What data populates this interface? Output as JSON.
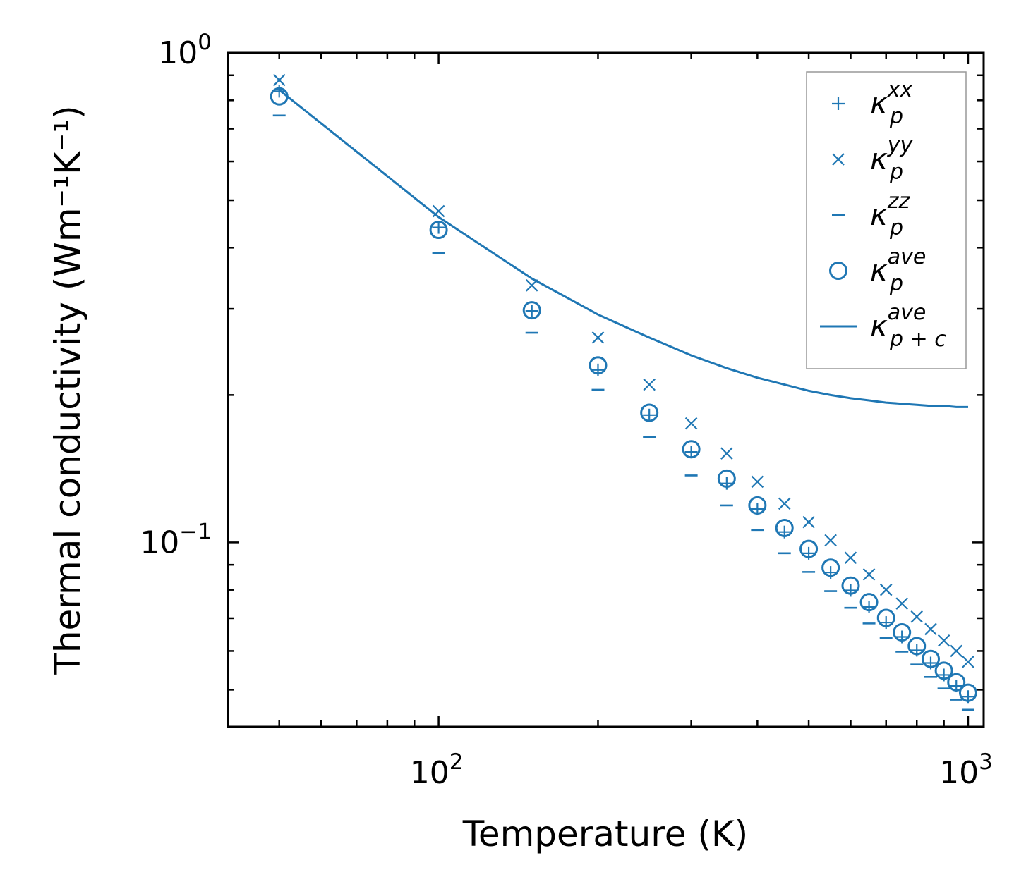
{
  "chart_data": {
    "type": "scatter",
    "title": "",
    "xlabel": "Temperature (K)",
    "ylabel": "Thermal conductivity (Wm⁻¹K⁻¹)",
    "xscale": "log",
    "yscale": "log",
    "xlim": [
      40,
      1070
    ],
    "ylim": [
      0.042,
      1.0
    ],
    "grid": false,
    "legend_position": "top-right",
    "x_tick_labels": [
      {
        "value": 100,
        "base": "10",
        "exp": "2"
      },
      {
        "value": 1000,
        "base": "10",
        "exp": "3"
      }
    ],
    "y_tick_labels": [
      {
        "value": 1.0,
        "base": "10",
        "exp": "0"
      },
      {
        "value": 0.1,
        "base": "10",
        "exp": "−1"
      }
    ],
    "x": [
      50,
      100,
      150,
      200,
      250,
      300,
      350,
      400,
      450,
      500,
      550,
      600,
      650,
      700,
      750,
      800,
      850,
      900,
      950,
      1000
    ],
    "series": [
      {
        "name": "κ_p^xx",
        "label_main": "κ",
        "label_sub": "p",
        "label_sup": "xx",
        "marker": "plus",
        "color": "#1f77b4",
        "values": [
          0.835,
          0.44,
          0.297,
          0.225,
          0.182,
          0.153,
          0.132,
          0.117,
          0.105,
          0.095,
          0.0868,
          0.0798,
          0.0738,
          0.0686,
          0.0641,
          0.0602,
          0.0567,
          0.0536,
          0.0509,
          0.0484
        ]
      },
      {
        "name": "κ_p^yy",
        "label_main": "κ",
        "label_sub": "p",
        "label_sup": "yy",
        "marker": "x",
        "color": "#1f77b4",
        "values": [
          0.88,
          0.475,
          0.335,
          0.262,
          0.21,
          0.175,
          0.152,
          0.133,
          0.12,
          0.11,
          0.101,
          0.093,
          0.086,
          0.08,
          0.075,
          0.0705,
          0.0665,
          0.063,
          0.06,
          0.057
        ]
      },
      {
        "name": "κ_p^zz",
        "label_main": "κ",
        "label_sub": "p",
        "label_sup": "zz",
        "marker": "hline",
        "color": "#1f77b4",
        "values": [
          0.745,
          0.39,
          0.268,
          0.205,
          0.164,
          0.137,
          0.119,
          0.106,
          0.095,
          0.087,
          0.0795,
          0.0735,
          0.0683,
          0.0638,
          0.0598,
          0.0563,
          0.0531,
          0.0503,
          0.0477,
          0.0455
        ]
      },
      {
        "name": "κ_p^ave",
        "label_main": "κ",
        "label_sub": "p",
        "label_sup": "ave",
        "marker": "circle",
        "color": "#1f77b4",
        "values": [
          0.815,
          0.435,
          0.298,
          0.23,
          0.184,
          0.155,
          0.135,
          0.119,
          0.107,
          0.097,
          0.0888,
          0.0816,
          0.0755,
          0.0701,
          0.0655,
          0.0614,
          0.0578,
          0.0547,
          0.0518,
          0.0493
        ]
      },
      {
        "name": "κ_{p+c}^ave",
        "label_main": "κ",
        "label_sub": "p + c",
        "label_sup": "ave",
        "marker": "line",
        "color": "#1f77b4",
        "values": [
          0.84,
          0.462,
          0.346,
          0.292,
          0.262,
          0.241,
          0.227,
          0.217,
          0.21,
          0.204,
          0.2,
          0.197,
          0.195,
          0.193,
          0.192,
          0.191,
          0.19,
          0.19,
          0.189,
          0.189
        ]
      }
    ]
  }
}
